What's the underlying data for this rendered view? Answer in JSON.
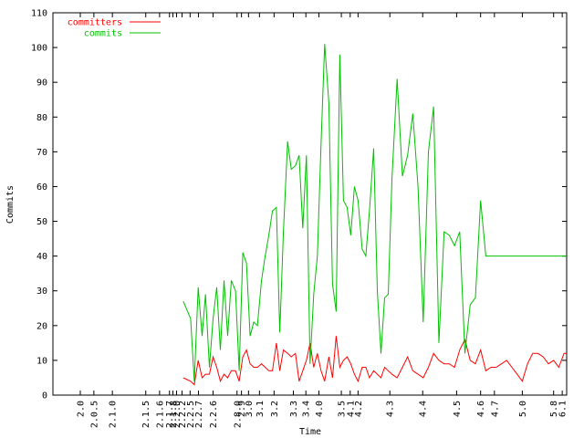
{
  "chart_data": {
    "type": "line",
    "title": "",
    "xlabel": "Time",
    "ylabel": "Commits",
    "ylim": [
      0,
      110
    ],
    "y_ticks": [
      0,
      10,
      20,
      30,
      40,
      50,
      60,
      70,
      80,
      90,
      100,
      110
    ],
    "grid": false,
    "legend_position": "top-left",
    "x_tick_labels": [
      "2.0",
      "2.0.5",
      "2.1.0",
      "2.1.5",
      "2.1.6",
      "2.1.7",
      "2.1.8",
      "2.2.0",
      "2.2.2",
      "2.2.5",
      "2.2.7",
      "2.2.6",
      "2.8.0",
      "2.9",
      "3.0",
      "3.1",
      "3.2",
      "3.3",
      "3.4",
      "4.0",
      "3.5",
      "4.1",
      "4.2",
      "4.3",
      "4.4",
      "4.5",
      "4.6",
      "4.7",
      "5.0",
      "5.8",
      "6.1"
    ],
    "x_tick_positions": [
      0.105,
      0.157,
      0.228,
      0.356,
      0.409,
      0.447,
      0.46,
      0.474,
      0.495,
      0.526,
      0.558,
      0.614,
      0.706,
      0.723,
      0.75,
      0.792,
      0.848,
      0.922,
      0.97,
      1.02,
      1.106,
      1.14,
      1.17,
      1.292,
      1.418,
      1.548,
      1.64,
      1.693,
      1.8,
      1.92,
      1.953
    ],
    "x_range": [
      0.0,
      1.97
    ],
    "series": [
      {
        "name": "committers",
        "color": "#ff0000",
        "x": [
          0.5,
          0.528,
          0.542,
          0.557,
          0.572,
          0.585,
          0.6,
          0.614,
          0.628,
          0.642,
          0.656,
          0.67,
          0.684,
          0.7,
          0.714,
          0.728,
          0.742,
          0.756,
          0.77,
          0.784,
          0.8,
          0.814,
          0.828,
          0.842,
          0.857,
          0.87,
          0.884,
          0.9,
          0.914,
          0.93,
          0.944,
          0.958,
          0.972,
          0.986,
          1.0,
          1.014,
          1.028,
          1.042,
          1.058,
          1.072,
          1.086,
          1.1,
          1.114,
          1.128,
          1.142,
          1.156,
          1.17,
          1.186,
          1.2,
          1.214,
          1.23,
          1.244,
          1.258,
          1.272,
          1.286,
          1.3,
          1.32,
          1.34,
          1.36,
          1.38,
          1.4,
          1.42,
          1.44,
          1.46,
          1.48,
          1.5,
          1.52,
          1.54,
          1.56,
          1.58,
          1.6,
          1.62,
          1.64,
          1.66,
          1.68,
          1.7,
          1.72,
          1.74,
          1.76,
          1.78,
          1.8,
          1.82,
          1.84,
          1.86,
          1.88,
          1.9,
          1.92,
          1.94,
          1.96,
          1.97
        ],
        "y": [
          5,
          4,
          3,
          10,
          5,
          6,
          6,
          11,
          8,
          4,
          6,
          5,
          7,
          7,
          4,
          11,
          13,
          9,
          8,
          8,
          9,
          8,
          7,
          7,
          15,
          7,
          13,
          12,
          11,
          12,
          4,
          7,
          10,
          15,
          8,
          12,
          7,
          4,
          11,
          5,
          17,
          8,
          10,
          11,
          9,
          6,
          4,
          8,
          8,
          5,
          7,
          6,
          5,
          8,
          7,
          6,
          5,
          8,
          11,
          7,
          6,
          5,
          8,
          12,
          10,
          9,
          9,
          8,
          13,
          16,
          10,
          9,
          13,
          7,
          8,
          8,
          9,
          10,
          8,
          6,
          4,
          9,
          12,
          12,
          11,
          9,
          10,
          8,
          12,
          12
        ]
      },
      {
        "name": "commits",
        "color": "#00c000",
        "x": [
          0.5,
          0.528,
          0.542,
          0.557,
          0.572,
          0.585,
          0.6,
          0.614,
          0.628,
          0.642,
          0.656,
          0.67,
          0.684,
          0.7,
          0.714,
          0.728,
          0.742,
          0.756,
          0.77,
          0.784,
          0.8,
          0.814,
          0.828,
          0.842,
          0.857,
          0.87,
          0.884,
          0.9,
          0.914,
          0.93,
          0.944,
          0.958,
          0.972,
          0.986,
          1.0,
          1.014,
          1.028,
          1.042,
          1.058,
          1.072,
          1.086,
          1.1,
          1.114,
          1.128,
          1.142,
          1.156,
          1.17,
          1.186,
          1.2,
          1.214,
          1.23,
          1.244,
          1.258,
          1.272,
          1.286,
          1.3,
          1.32,
          1.34,
          1.36,
          1.38,
          1.4,
          1.42,
          1.44,
          1.46,
          1.48,
          1.5,
          1.52,
          1.54,
          1.56,
          1.58,
          1.6,
          1.62,
          1.64,
          1.66,
          1.68,
          1.7,
          1.72,
          1.74,
          1.76,
          1.78,
          1.8,
          1.82,
          1.84,
          1.86,
          1.88,
          1.9,
          1.92,
          1.94,
          1.96,
          1.97
        ],
        "y": [
          27,
          22,
          4,
          31,
          17,
          29,
          8,
          22,
          31,
          13,
          33,
          17,
          33,
          30,
          7,
          41,
          38,
          17,
          21,
          20,
          33,
          40,
          46,
          53,
          54,
          18,
          47,
          73,
          65,
          66,
          69,
          48,
          69,
          9,
          29,
          40,
          72,
          101,
          84,
          32,
          24,
          98,
          56,
          54,
          46,
          60,
          56,
          42,
          40,
          53,
          71,
          30,
          12,
          28,
          29,
          62,
          91,
          63,
          69,
          81,
          60,
          21,
          70,
          83,
          15,
          47,
          46,
          43,
          47,
          12,
          26,
          28,
          56,
          40,
          40,
          40,
          40,
          40,
          40,
          40,
          40,
          40,
          40,
          40,
          40,
          40,
          40,
          40,
          40,
          40
        ]
      }
    ]
  }
}
